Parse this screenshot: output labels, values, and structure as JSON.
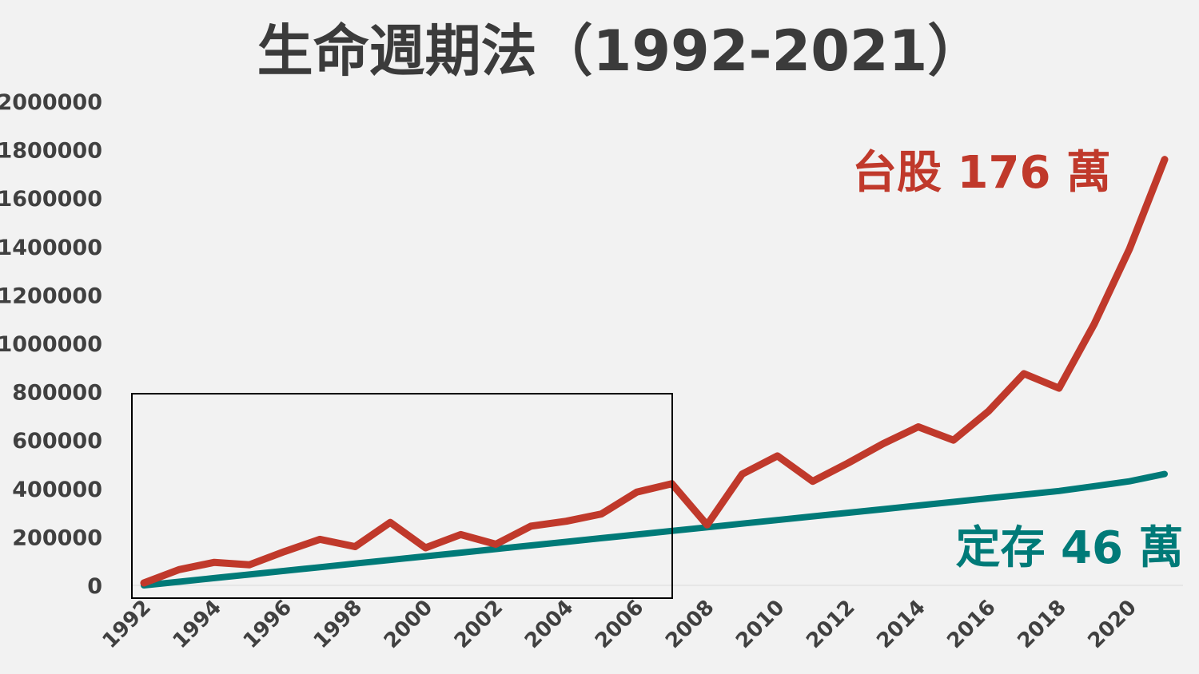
{
  "colors": {
    "background": "#f2f2f2",
    "text": "#404040",
    "taiwan_stock": "#c0392b",
    "fixed_deposit": "#007a78",
    "highlight_box": "#000000"
  },
  "chart_data": {
    "type": "line",
    "title": "生命週期法（1992-2021）",
    "xlabel": "",
    "ylabel": "",
    "ylim": [
      0,
      2000000
    ],
    "yticks": [
      "0",
      "200000",
      "400000",
      "600000",
      "800000",
      "1000000",
      "1200000",
      "1400000",
      "1600000",
      "1800000",
      "2000000"
    ],
    "xticks": [
      "1992",
      "1994",
      "1996",
      "1998",
      "2000",
      "2002",
      "2004",
      "2006",
      "2008",
      "2010",
      "2012",
      "2014",
      "2016",
      "2018",
      "2020"
    ],
    "grid": false,
    "x": [
      1992,
      1993,
      1994,
      1995,
      1996,
      1997,
      1998,
      1999,
      2000,
      2001,
      2002,
      2003,
      2004,
      2005,
      2006,
      2007,
      2008,
      2009,
      2010,
      2011,
      2012,
      2013,
      2014,
      2015,
      2016,
      2017,
      2018,
      2019,
      2020,
      2021
    ],
    "series": [
      {
        "id": "taiwan_stock",
        "values": [
          10000,
          65000,
          95000,
          85000,
          140000,
          190000,
          160000,
          260000,
          155000,
          210000,
          170000,
          245000,
          265000,
          295000,
          385000,
          420000,
          250000,
          460000,
          535000,
          430000,
          505000,
          585000,
          655000,
          600000,
          720000,
          875000,
          815000,
          1080000,
          1390000,
          1760000
        ]
      },
      {
        "id": "fixed_deposit",
        "values": [
          0,
          15000,
          30000,
          45000,
          60000,
          75000,
          90000,
          105000,
          120000,
          135000,
          150000,
          165000,
          180000,
          195000,
          210000,
          225000,
          240000,
          255000,
          270000,
          285000,
          300000,
          315000,
          330000,
          345000,
          360000,
          375000,
          390000,
          410000,
          430000,
          460000
        ]
      }
    ],
    "annotations": {
      "taiwan_stock": "台股 176 萬",
      "fixed_deposit": "定存 46 萬"
    },
    "highlight_range": [
      1992,
      2007
    ]
  }
}
